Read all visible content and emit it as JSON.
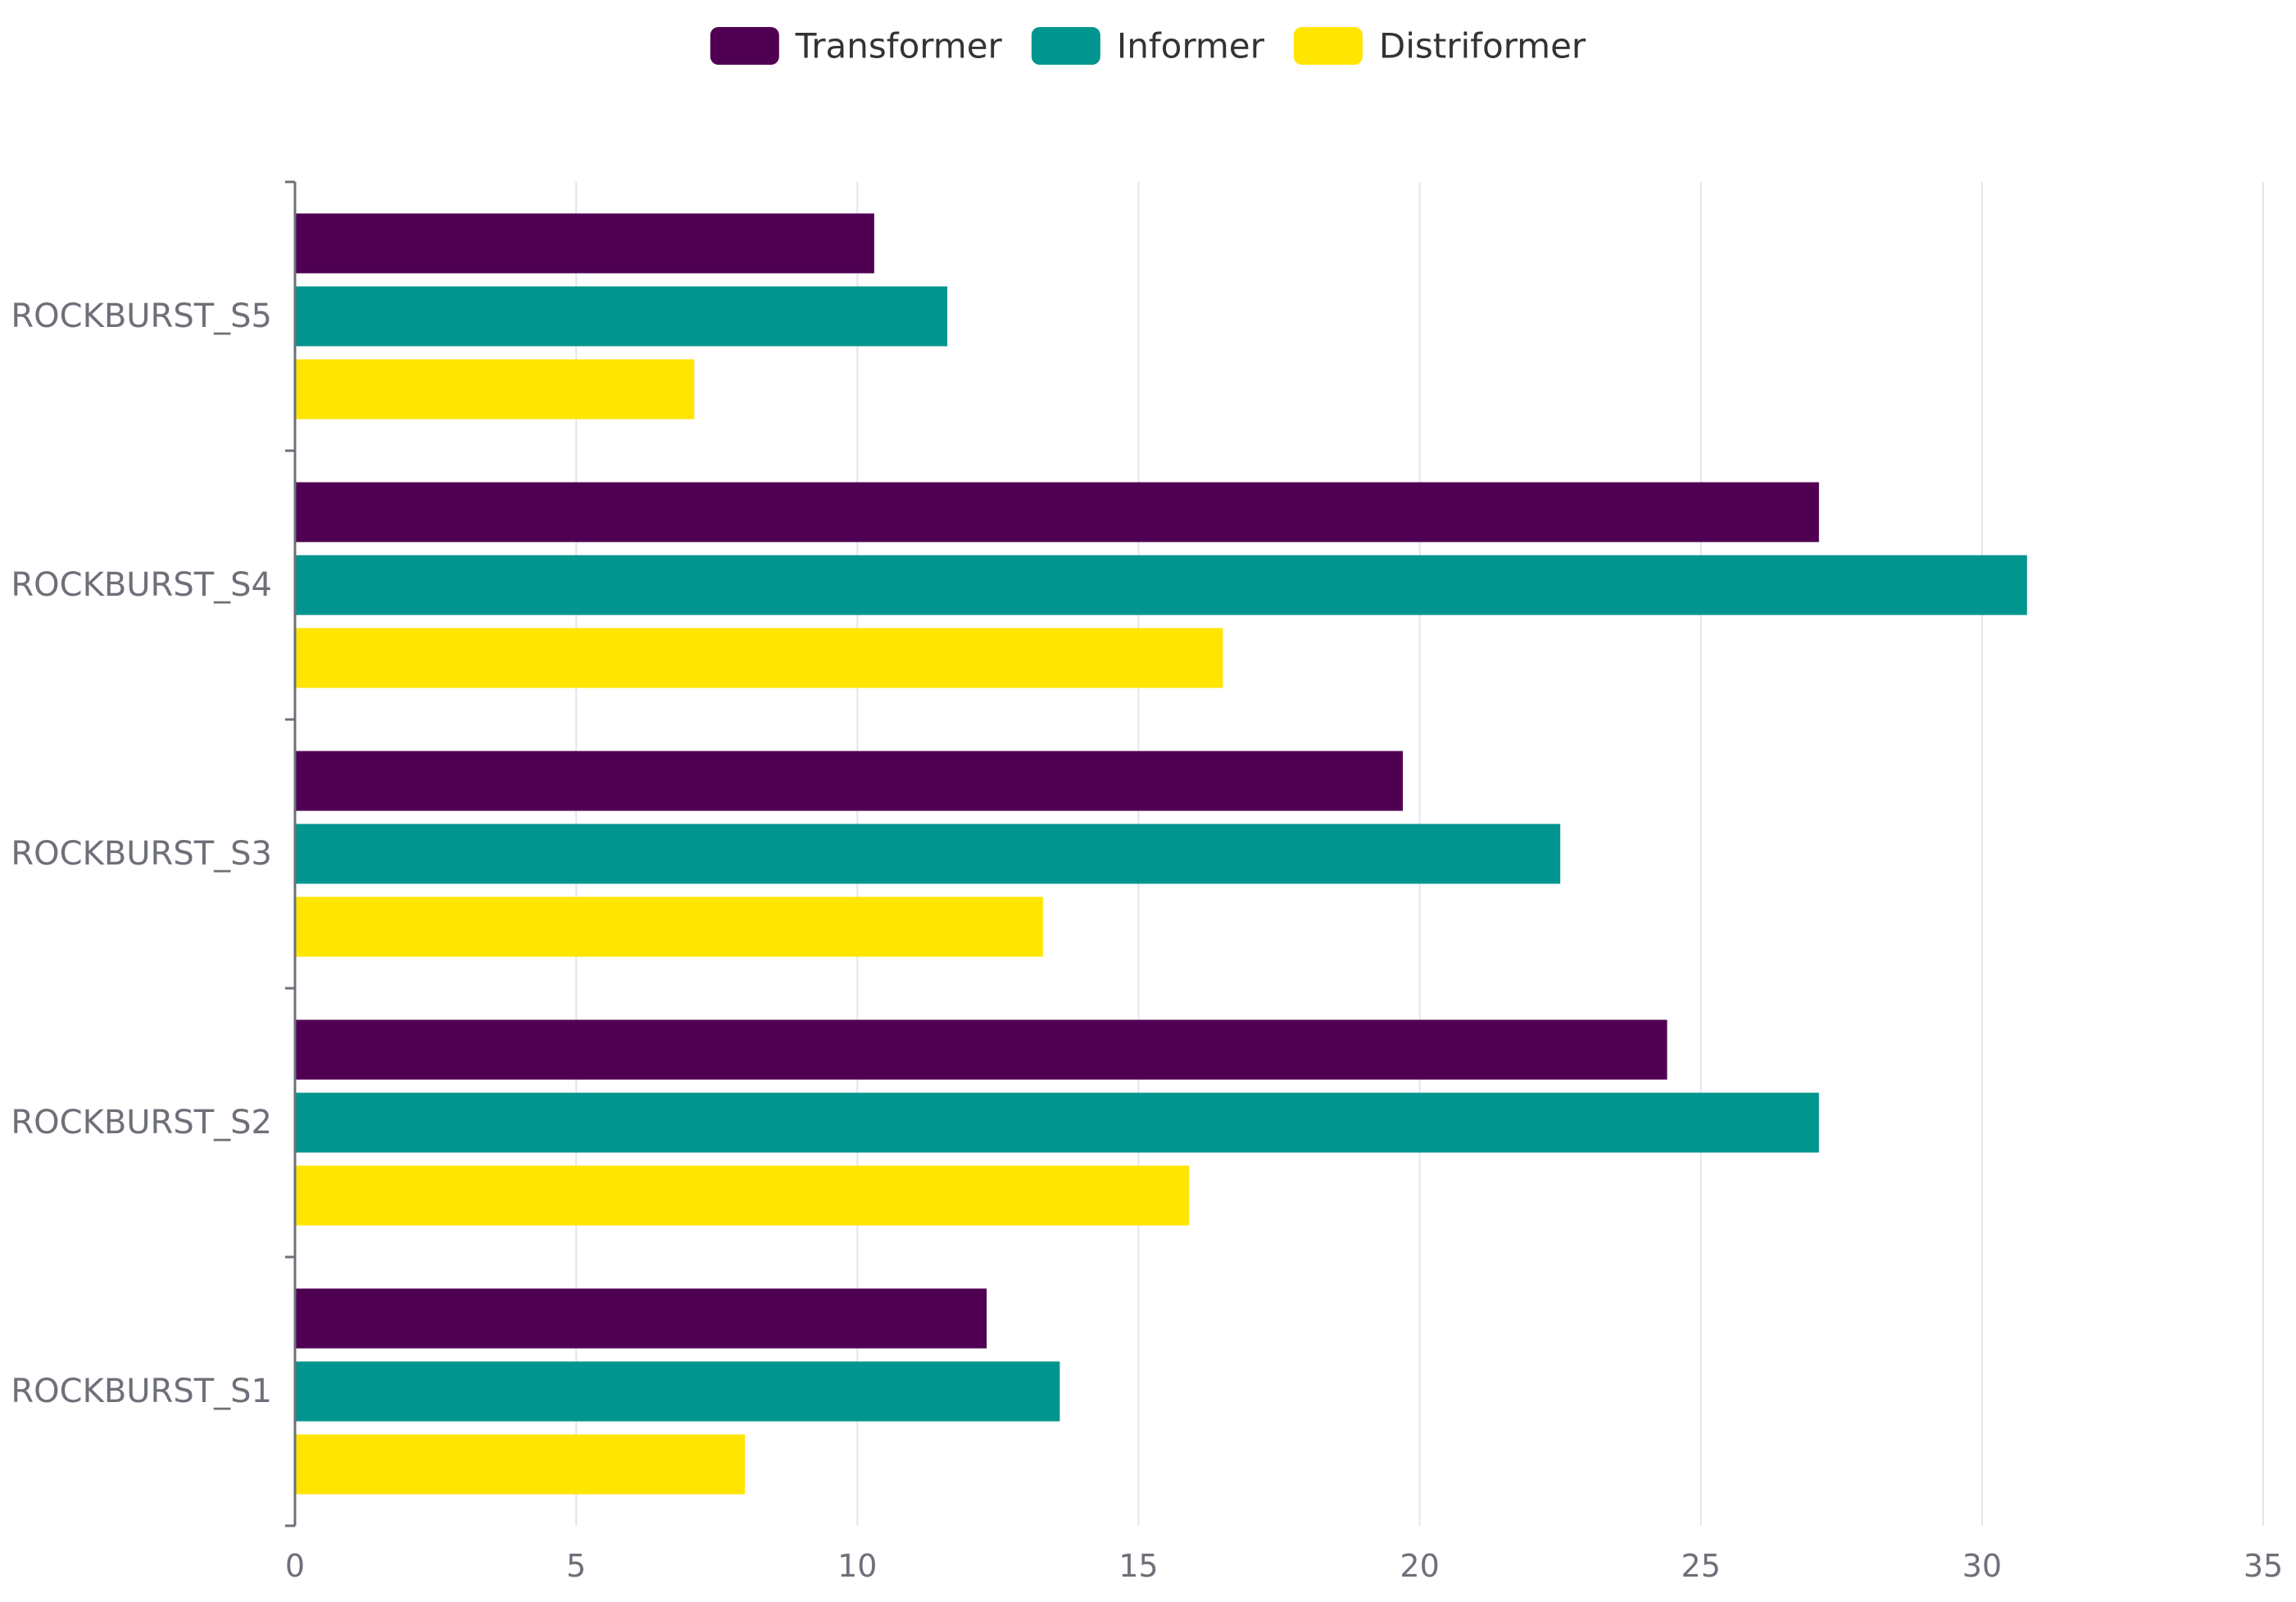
{
  "chart_data": {
    "type": "bar",
    "orientation": "horizontal",
    "title": "",
    "xlabel": "",
    "ylabel": "",
    "categories": [
      "ROCKBURST_S1",
      "ROCKBURST_S2",
      "ROCKBURST_S3",
      "ROCKBURST_S4",
      "ROCKBURST_S5"
    ],
    "series": [
      {
        "name": "Transformer",
        "color": "#4f0052",
        "values": [
          12.3,
          24.4,
          19.7,
          27.1,
          10.3
        ]
      },
      {
        "name": "Informer",
        "color": "#00958e",
        "values": [
          13.6,
          27.1,
          22.5,
          30.8,
          11.6
        ]
      },
      {
        "name": "Distriformer",
        "color": "#ffe500",
        "values": [
          8.0,
          15.9,
          13.3,
          16.5,
          7.1
        ]
      }
    ],
    "xlim": [
      0,
      35
    ],
    "xticks": [
      0,
      5,
      10,
      15,
      20,
      25,
      30,
      35
    ],
    "xtick_labels": [
      "0",
      "5",
      "10",
      "15",
      "20",
      "25",
      "30",
      "35"
    ],
    "grid": "vertical",
    "legend_position": "top-center"
  }
}
